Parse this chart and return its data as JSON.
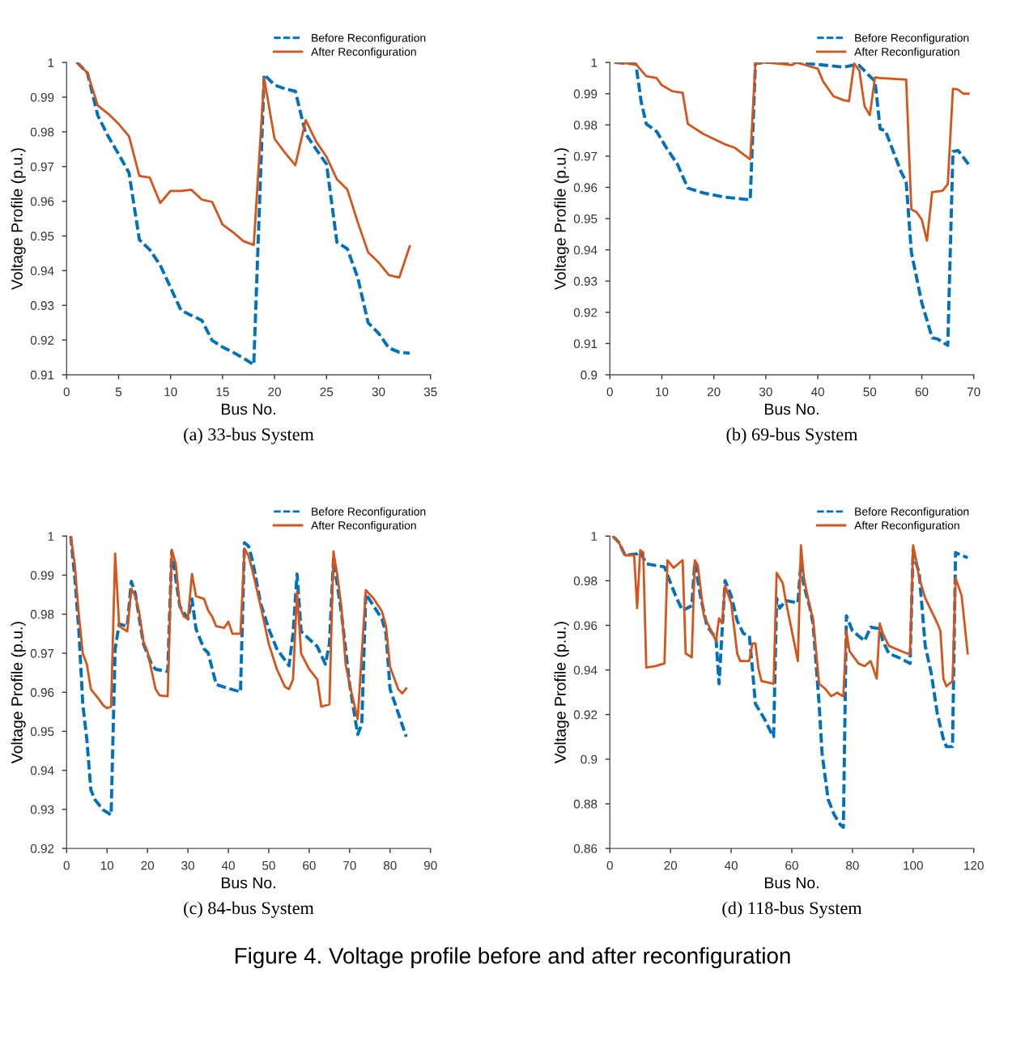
{
  "chart_data": [
    {
      "type": "line",
      "title": "(a) 33-bus System",
      "xlabel": "Bus No.",
      "ylabel": "Voltage Profile (p.u.)",
      "xlim": [
        0,
        35
      ],
      "xticks": [
        0,
        5,
        10,
        15,
        20,
        25,
        30,
        35
      ],
      "ylim": [
        0.91,
        1
      ],
      "yticks": [
        0.91,
        0.92,
        0.93,
        0.94,
        0.95,
        0.96,
        0.97,
        0.98,
        0.99,
        1
      ],
      "legend": "top right",
      "grid": false,
      "series": [
        {
          "name": "Before Reconfiguration",
          "color": "#0072bd",
          "line_style": "dashed",
          "x": [
            1,
            2,
            3,
            4,
            5,
            6,
            7,
            8,
            9,
            10,
            11,
            12,
            13,
            14,
            15,
            16,
            17,
            18,
            19,
            20,
            21,
            22,
            23,
            24,
            25,
            26,
            27,
            28,
            29,
            30,
            31,
            32,
            33
          ],
          "values": [
            1.0,
            0.997,
            0.9847,
            0.9787,
            0.9736,
            0.9682,
            0.9489,
            0.946,
            0.9416,
            0.9351,
            0.9286,
            0.9271,
            0.9257,
            0.9199,
            0.918,
            0.9165,
            0.9148,
            0.9129,
            0.9965,
            0.9935,
            0.9924,
            0.9917,
            0.9794,
            0.975,
            0.9707,
            0.9482,
            0.9463,
            0.938,
            0.925,
            0.922,
            0.9177,
            0.9165,
            0.9162
          ]
        },
        {
          "name": "After Reconfiguration",
          "color": "#d95319",
          "line_style": "solid",
          "x": [
            1,
            2,
            3,
            4,
            5,
            6,
            7,
            8,
            9,
            10,
            11,
            12,
            13,
            14,
            15,
            16,
            17,
            18,
            19,
            20,
            21,
            22,
            23,
            24,
            25,
            26,
            27,
            28,
            29,
            30,
            31,
            32,
            33
          ],
          "values": [
            1.0,
            0.997,
            0.9876,
            0.9852,
            0.9823,
            0.9787,
            0.9673,
            0.9668,
            0.9595,
            0.963,
            0.963,
            0.9633,
            0.9605,
            0.9598,
            0.9533,
            0.9511,
            0.9485,
            0.9474,
            0.9955,
            0.978,
            0.974,
            0.9704,
            0.9834,
            0.9772,
            0.9728,
            0.9663,
            0.9634,
            0.954,
            0.9453,
            0.9424,
            0.9387,
            0.938,
            0.947
          ]
        }
      ]
    },
    {
      "type": "line",
      "title": "(b) 69-bus System",
      "xlabel": "Bus No.",
      "ylabel": "Voltage Profile (p.u.)",
      "xlim": [
        0,
        70
      ],
      "xticks": [
        0,
        10,
        20,
        30,
        40,
        50,
        60,
        70
      ],
      "ylim": [
        0.9,
        1
      ],
      "yticks": [
        0.9,
        0.91,
        0.92,
        0.93,
        0.94,
        0.95,
        0.96,
        0.97,
        0.98,
        0.99,
        1
      ],
      "legend": "top right",
      "grid": false,
      "series": [
        {
          "name": "Before Reconfiguration",
          "color": "#0072bd",
          "line_style": "dashed",
          "x": [
            1,
            5,
            6,
            7,
            9,
            11,
            13,
            15,
            18,
            22,
            27,
            28,
            30,
            36,
            38,
            45,
            47,
            48,
            50,
            51,
            52,
            53,
            56,
            57,
            58,
            60,
            62,
            63,
            65,
            66,
            67,
            69
          ],
          "values": [
            1.0,
            0.9995,
            0.9876,
            0.9803,
            0.9779,
            0.9723,
            0.9674,
            0.9598,
            0.9582,
            0.9569,
            0.956,
            0.9997,
            1.0,
            1.0,
            0.9997,
            0.9985,
            0.9992,
            0.999,
            0.9956,
            0.994,
            0.9787,
            0.9782,
            0.965,
            0.9618,
            0.9392,
            0.9231,
            0.9118,
            0.9115,
            0.9094,
            0.9715,
            0.9718,
            0.9674
          ]
        },
        {
          "name": "After Reconfiguration",
          "color": "#d95319",
          "line_style": "solid",
          "x": [
            1,
            5,
            7,
            9,
            10,
            12,
            14,
            15,
            18,
            21,
            22,
            24,
            26,
            27,
            28,
            30,
            35,
            36,
            40,
            41,
            43,
            45,
            46,
            47,
            48,
            49,
            50,
            51,
            52,
            57,
            58,
            59,
            60,
            61,
            62,
            64,
            65,
            66,
            67,
            68,
            69
          ],
          "values": [
            1.0,
            0.9995,
            0.9956,
            0.995,
            0.9927,
            0.9908,
            0.9903,
            0.9803,
            0.9771,
            0.9747,
            0.9739,
            0.9727,
            0.9702,
            0.969,
            0.9997,
            1.0,
            0.9992,
            1.0,
            0.998,
            0.994,
            0.9892,
            0.9879,
            0.9876,
            0.9997,
            0.9973,
            0.986,
            0.9831,
            0.9952,
            0.995,
            0.9945,
            0.9529,
            0.9521,
            0.9497,
            0.9429,
            0.9585,
            0.9589,
            0.961,
            0.9916,
            0.9913,
            0.99,
            0.99
          ]
        }
      ]
    },
    {
      "type": "line",
      "title": "(c) 84-bus System",
      "xlabel": "Bus No.",
      "ylabel": "Voltage Profile (p.u.)",
      "xlim": [
        0,
        90
      ],
      "xticks": [
        0,
        10,
        20,
        30,
        40,
        50,
        60,
        70,
        80,
        90
      ],
      "ylim": [
        0.92,
        1
      ],
      "yticks": [
        0.92,
        0.93,
        0.94,
        0.95,
        0.96,
        0.97,
        0.98,
        0.99,
        1
      ],
      "legend": "top right",
      "grid": false,
      "series": [
        {
          "name": "Before Reconfiguration",
          "color": "#0072bd",
          "line_style": "dashed",
          "x": [
            1,
            2,
            3,
            4,
            5,
            6,
            7,
            9,
            11,
            12,
            13,
            15,
            16,
            17,
            19,
            21,
            22,
            25,
            26,
            28,
            30,
            31,
            32,
            34,
            35,
            37,
            40,
            43,
            44,
            45,
            46,
            48,
            50,
            52,
            55,
            56,
            57,
            58,
            59,
            62,
            64,
            65,
            66,
            67,
            68,
            70,
            72,
            73,
            74,
            76,
            78,
            79,
            80,
            84
          ],
          "values": [
            1.0,
            0.9897,
            0.9762,
            0.9569,
            0.9479,
            0.935,
            0.9325,
            0.9299,
            0.9286,
            0.9711,
            0.9775,
            0.9769,
            0.9884,
            0.9852,
            0.9724,
            0.9672,
            0.9659,
            0.9653,
            0.9961,
            0.982,
            0.9788,
            0.9839,
            0.9762,
            0.9711,
            0.9701,
            0.962,
            0.961,
            0.9601,
            0.9983,
            0.9974,
            0.9936,
            0.9827,
            0.9762,
            0.9711,
            0.9668,
            0.975,
            0.9903,
            0.9756,
            0.9746,
            0.9717,
            0.9672,
            0.9724,
            0.9942,
            0.9871,
            0.9801,
            0.962,
            0.9492,
            0.9518,
            0.9852,
            0.982,
            0.9788,
            0.975,
            0.9608,
            0.9486
          ]
        },
        {
          "name": "After Reconfiguration",
          "color": "#d95319",
          "line_style": "solid",
          "x": [
            1,
            2,
            3,
            4,
            5,
            6,
            8,
            9,
            10,
            11,
            12,
            13,
            15,
            16,
            17,
            18,
            19,
            20,
            22,
            23,
            25,
            26,
            27,
            28,
            29,
            30,
            31,
            32,
            34,
            35,
            36,
            37,
            39,
            40,
            41,
            43,
            44,
            45,
            46,
            48,
            50,
            52,
            54,
            55,
            56,
            57,
            58,
            60,
            62,
            63,
            65,
            66,
            67,
            68,
            69,
            70,
            72,
            73,
            74,
            76,
            78,
            79,
            80,
            82,
            83,
            84
          ],
          "values": [
            1.0,
            0.9929,
            0.9801,
            0.9699,
            0.9672,
            0.9608,
            0.9582,
            0.9567,
            0.9559,
            0.9563,
            0.9955,
            0.9769,
            0.9756,
            0.9865,
            0.9846,
            0.9801,
            0.973,
            0.9704,
            0.9608,
            0.9592,
            0.959,
            0.9965,
            0.9929,
            0.982,
            0.9794,
            0.9788,
            0.9903,
            0.9846,
            0.9839,
            0.981,
            0.9794,
            0.9769,
            0.9765,
            0.9781,
            0.975,
            0.975,
            0.9968,
            0.9949,
            0.991,
            0.982,
            0.9724,
            0.9659,
            0.9614,
            0.9608,
            0.9633,
            0.9859,
            0.9699,
            0.9659,
            0.9633,
            0.9563,
            0.9569,
            0.9961,
            0.9897,
            0.9814,
            0.9672,
            0.962,
            0.9531,
            0.9699,
            0.9862,
            0.9839,
            0.9807,
            0.9769,
            0.9665,
            0.9608,
            0.9597,
            0.961
          ]
        }
      ]
    },
    {
      "type": "line",
      "title": "(d) 118-bus System",
      "xlabel": "Bus No.",
      "ylabel": "Voltage Profile (p.u.)",
      "xlim": [
        0,
        120
      ],
      "xticks": [
        0,
        20,
        40,
        60,
        80,
        100,
        120
      ],
      "ylim": [
        0.86,
        1
      ],
      "yticks": [
        0.86,
        0.88,
        0.9,
        0.92,
        0.94,
        0.96,
        0.98,
        1
      ],
      "legend": "top right",
      "grid": false,
      "annotations": [
        "Figure 4. Voltage profile before and after reconfiguration"
      ],
      "series": [
        {
          "name": "Before Reconfiguration",
          "color": "#0072bd",
          "line_style": "dashed",
          "x": [
            1,
            3,
            5,
            9,
            10,
            12,
            18,
            20,
            22,
            24,
            27,
            28,
            30,
            32,
            35,
            36,
            38,
            40,
            42,
            44,
            46,
            47,
            48,
            51,
            53,
            54,
            55,
            56,
            58,
            62,
            63,
            64,
            66,
            67,
            69,
            70,
            72,
            74,
            76,
            77,
            78,
            80,
            82,
            84,
            86,
            88,
            89,
            90,
            92,
            96,
            99,
            100,
            101,
            102,
            104,
            106,
            108,
            110,
            111,
            113,
            114,
            116,
            118
          ],
          "values": [
            1.0,
            0.9971,
            0.9914,
            0.9921,
            0.993,
            0.9876,
            0.9862,
            0.979,
            0.9722,
            0.9666,
            0.9688,
            0.988,
            0.9722,
            0.9598,
            0.9542,
            0.9338,
            0.9801,
            0.9733,
            0.962,
            0.9564,
            0.9553,
            0.9406,
            0.9248,
            0.918,
            0.9124,
            0.9101,
            0.9722,
            0.9677,
            0.9711,
            0.97,
            0.988,
            0.9778,
            0.9677,
            0.9609,
            0.9248,
            0.9022,
            0.8819,
            0.8751,
            0.8706,
            0.8695,
            0.9643,
            0.9575,
            0.9553,
            0.953,
            0.9592,
            0.9587,
            0.9587,
            0.953,
            0.9474,
            0.9451,
            0.9429,
            0.9937,
            0.988,
            0.9835,
            0.9508,
            0.9384,
            0.9203,
            0.909,
            0.9056,
            0.9056,
            0.9926,
            0.9914,
            0.9903
          ]
        },
        {
          "name": "After Reconfiguration",
          "color": "#d95319",
          "line_style": "solid",
          "x": [
            1,
            3,
            5,
            8,
            9,
            10,
            11,
            12,
            15,
            18,
            19,
            21,
            24,
            25,
            27,
            28,
            29,
            31,
            33,
            35,
            36,
            37,
            38,
            40,
            42,
            43,
            46,
            47,
            48,
            49,
            50,
            54,
            55,
            57,
            58,
            62,
            63,
            64,
            66,
            67,
            69,
            71,
            73,
            75,
            76,
            77,
            78,
            79,
            82,
            84,
            86,
            88,
            89,
            90,
            92,
            96,
            98,
            99,
            100,
            101,
            102,
            104,
            106,
            108,
            109,
            110,
            111,
            113,
            114,
            116,
            118
          ],
          "values": [
            1.0,
            0.9971,
            0.9914,
            0.9914,
            0.9677,
            0.9937,
            0.9926,
            0.9411,
            0.9417,
            0.9429,
            0.9892,
            0.9858,
            0.9892,
            0.9474,
            0.9456,
            0.9892,
            0.9869,
            0.9643,
            0.9587,
            0.953,
            0.9631,
            0.9609,
            0.9778,
            0.97,
            0.9474,
            0.944,
            0.944,
            0.9519,
            0.9519,
            0.9406,
            0.935,
            0.9338,
            0.9835,
            0.979,
            0.9711,
            0.944,
            0.9959,
            0.9813,
            0.9677,
            0.9631,
            0.9338,
            0.9316,
            0.9282,
            0.9298,
            0.9289,
            0.9282,
            0.9575,
            0.9485,
            0.9429,
            0.9417,
            0.944,
            0.9361,
            0.9609,
            0.9564,
            0.9508,
            0.9485,
            0.9474,
            0.9474,
            0.9959,
            0.9892,
            0.9813,
            0.9722,
            0.9666,
            0.9609,
            0.9575,
            0.9361,
            0.9327,
            0.935,
            0.9813,
            0.9733,
            0.9474
          ]
        }
      ]
    }
  ]
}
